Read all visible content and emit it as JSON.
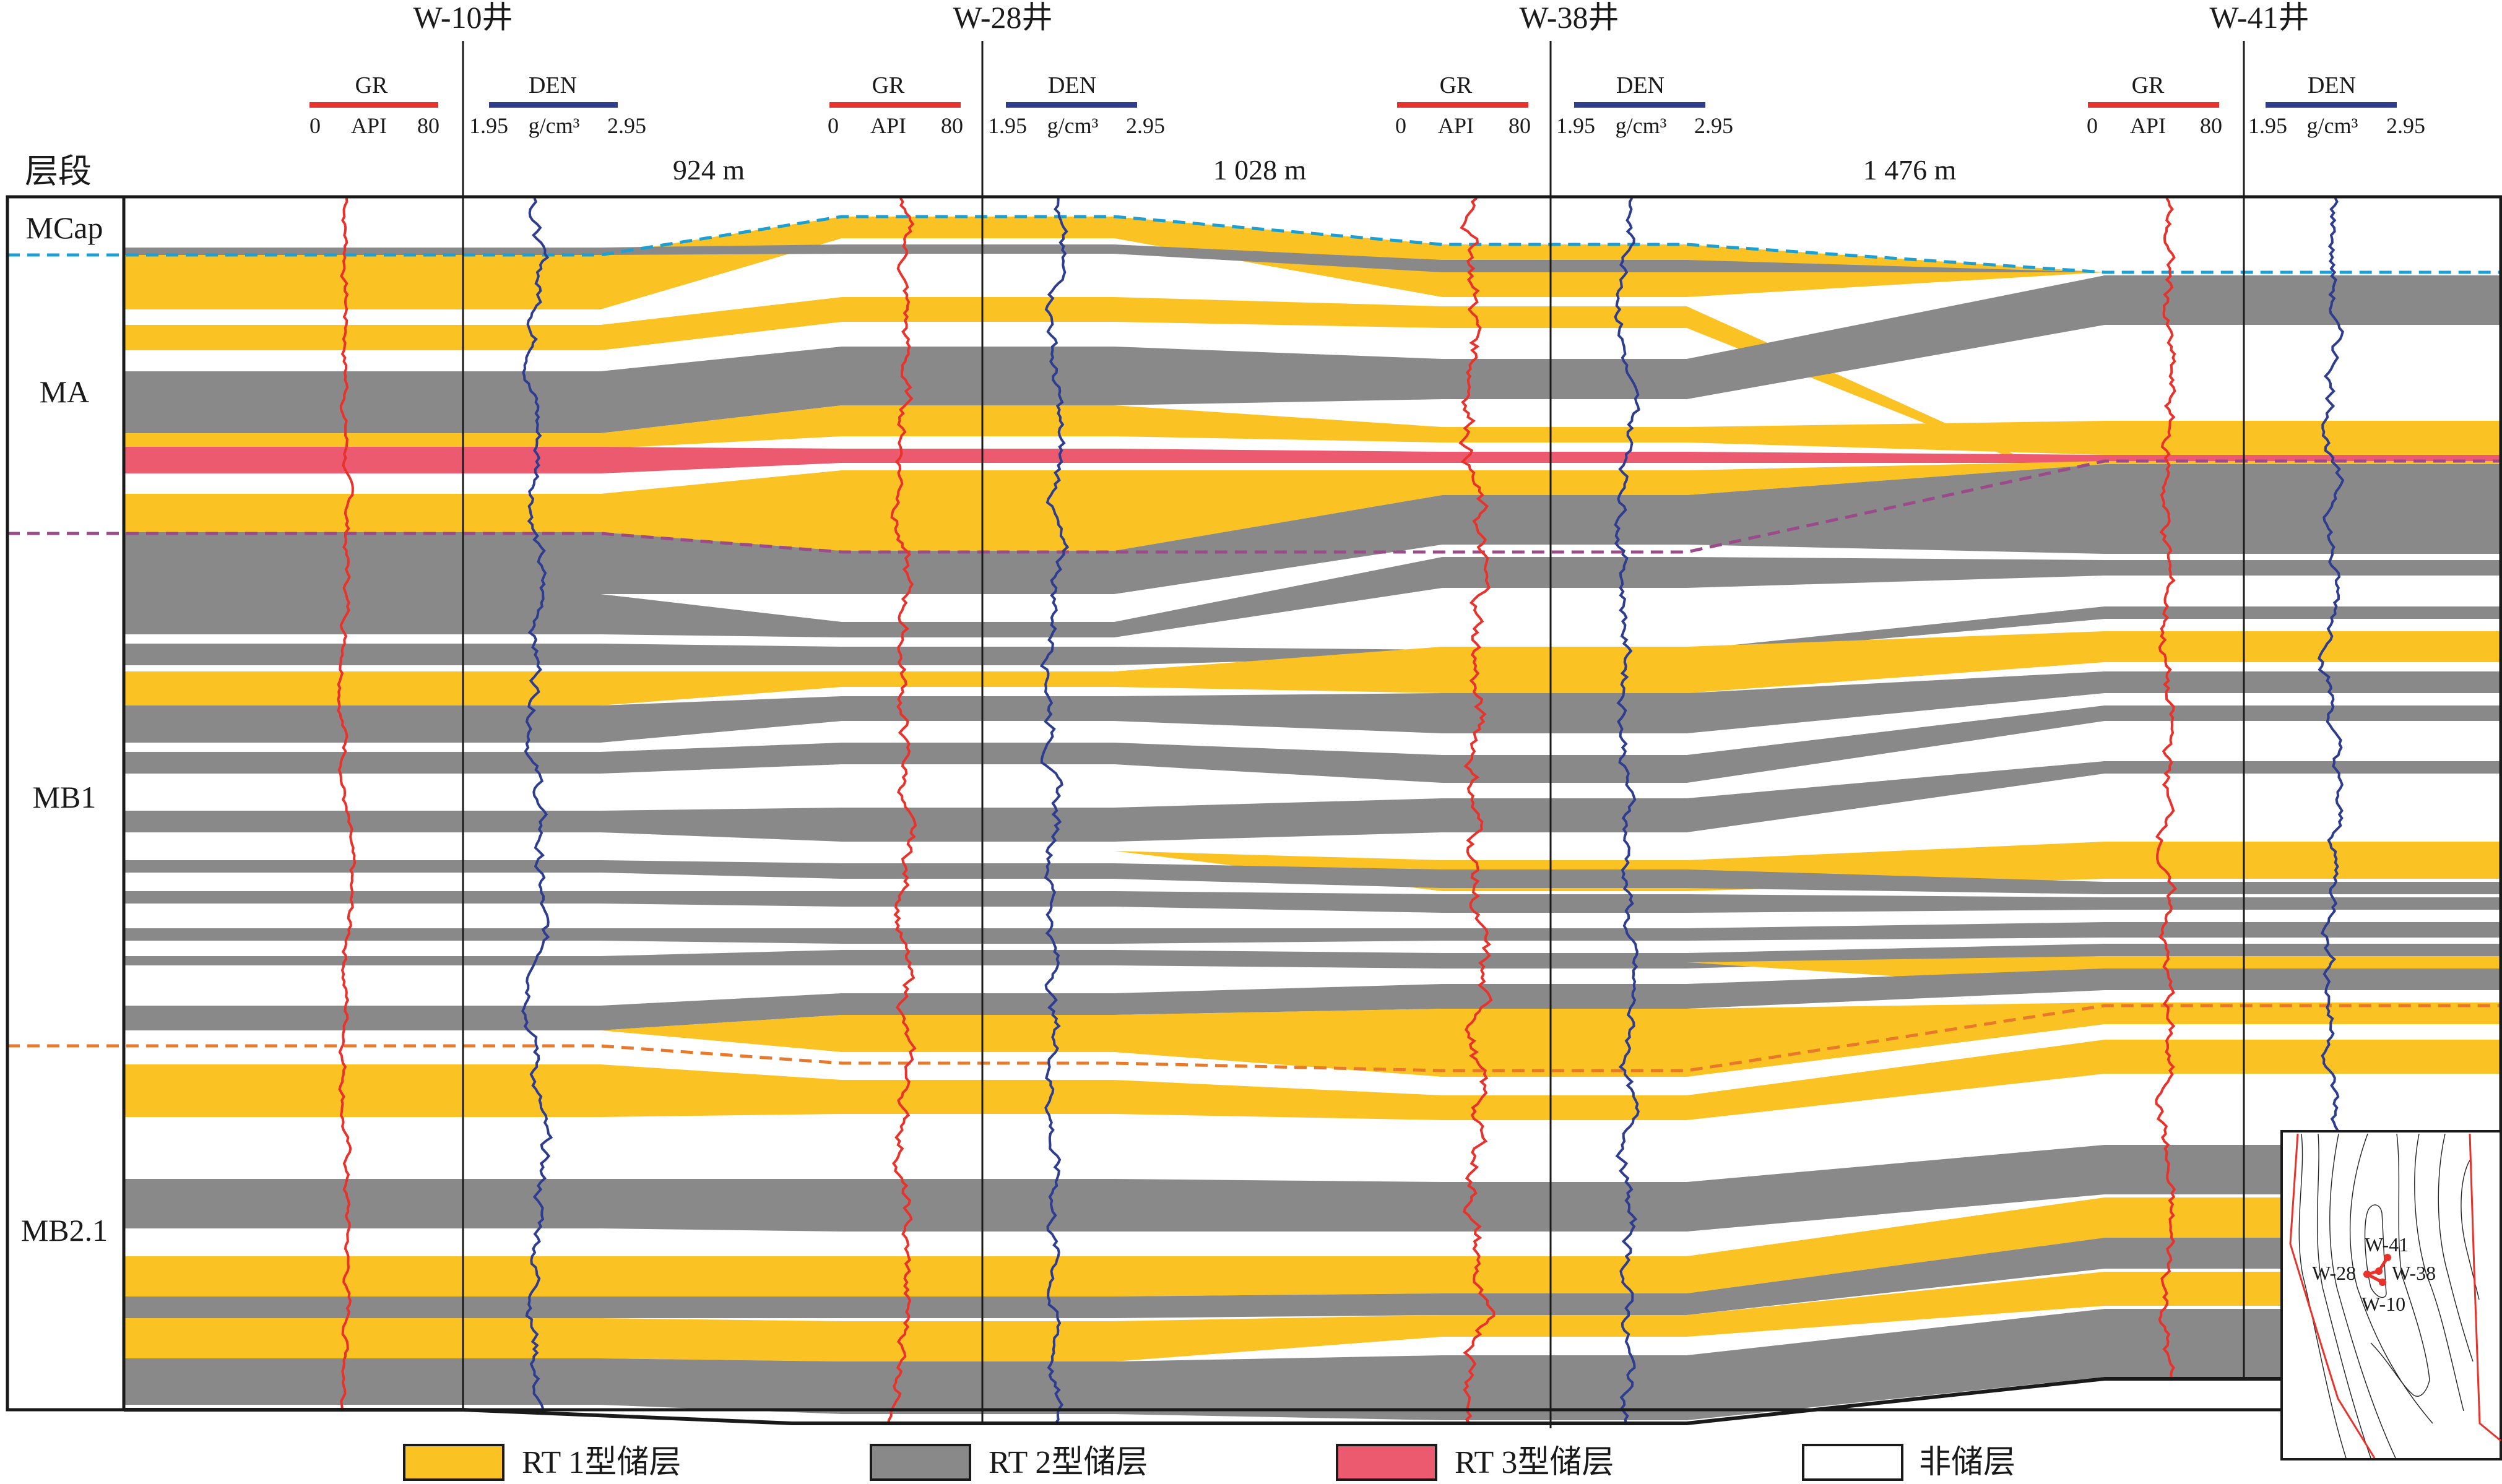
{
  "figure": {
    "column_header": "层段",
    "colors": {
      "rt1": "#fbc223",
      "rt2": "#898989",
      "rt3": "#eb5a6e",
      "non": "#ffffff",
      "gr": "#e8322b",
      "den": "#2e3d8f",
      "top_mcap": "#1ca0d4",
      "top_mb1": "#9b4a8a",
      "top_mb21": "#e8792a",
      "frame": "#1a1a1a"
    },
    "wells": [
      {
        "name": "W-10井",
        "gr": {
          "label": "GR",
          "min": "0",
          "unit": "API",
          "max": "80"
        },
        "den": {
          "label": "DEN",
          "min": "1.95",
          "unit": "g/cm³",
          "max": "2.95"
        }
      },
      {
        "name": "W-28井",
        "gr": {
          "label": "GR",
          "min": "0",
          "unit": "API",
          "max": "80"
        },
        "den": {
          "label": "DEN",
          "min": "1.95",
          "unit": "g/cm³",
          "max": "2.95"
        }
      },
      {
        "name": "W-38井",
        "gr": {
          "label": "GR",
          "min": "0",
          "unit": "API",
          "max": "80"
        },
        "den": {
          "label": "DEN",
          "min": "1.95",
          "unit": "g/cm³",
          "max": "2.95"
        }
      },
      {
        "name": "W-41井",
        "gr": {
          "label": "GR",
          "min": "0",
          "unit": "API",
          "max": "80"
        },
        "den": {
          "label": "DEN",
          "min": "1.95",
          "unit": "g/cm³",
          "max": "2.95"
        }
      }
    ],
    "distances": [
      "924 m",
      "1 028 m",
      "1 476 m"
    ],
    "zones": [
      "MCap",
      "MA",
      "MB1",
      "MB2.1"
    ],
    "legend": [
      {
        "key": "rt1",
        "label": "RT 1型储层"
      },
      {
        "key": "rt2",
        "label": "RT 2型储层"
      },
      {
        "key": "rt3",
        "label": "RT 3型储层"
      },
      {
        "key": "non",
        "label": "非储层"
      }
    ],
    "inset_map": {
      "wells": [
        "W-41",
        "W-28",
        "W-38",
        "W-10"
      ]
    }
  }
}
